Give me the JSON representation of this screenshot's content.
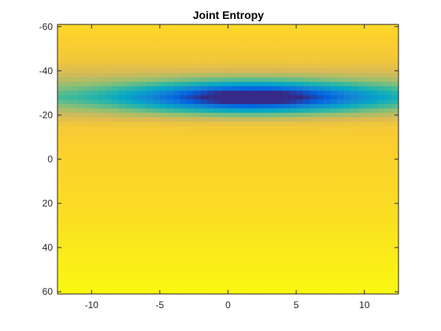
{
  "chart_data": {
    "type": "heatmap",
    "title": "Joint Entropy",
    "xlabel": "",
    "ylabel": "",
    "xlim": [
      -12.5,
      12.5
    ],
    "ylim": [
      -61,
      61
    ],
    "y_axis_reversed": true,
    "x_ticks": [
      -10,
      -5,
      0,
      5,
      10
    ],
    "x_tick_labels": [
      "-10",
      "-5",
      "0",
      "5",
      "10"
    ],
    "y_ticks": [
      -60,
      -40,
      -20,
      0,
      20,
      40,
      60
    ],
    "y_tick_labels": [
      "-60",
      "-40",
      "-20",
      "0",
      "20",
      "40",
      "60"
    ],
    "grid": false,
    "colormap": "parula",
    "colormap_stops": [
      "#352a87",
      "#0363e1",
      "#1485d4",
      "#06a7c6",
      "#38b99e",
      "#92bf73",
      "#d9ba56",
      "#fcce2e",
      "#f9fb0e"
    ],
    "value_range": [
      0,
      1
    ],
    "description_of_field": {
      "background_gradient_rows": [
        {
          "y": -60,
          "value": 0.9
        },
        {
          "y": -45,
          "value": 0.84
        },
        {
          "y": -28,
          "value": 0.6
        },
        {
          "y": -15,
          "value": 0.85
        },
        {
          "y": 0,
          "value": 0.89
        },
        {
          "y": 20,
          "value": 0.91
        },
        {
          "y": 40,
          "value": 0.95
        },
        {
          "y": 60,
          "value": 0.99
        }
      ],
      "minimum": {
        "x": 1.8,
        "y": -28,
        "value": 0.0
      },
      "trough_half_width_x": 6,
      "trough_half_width_y": 4.5
    }
  }
}
